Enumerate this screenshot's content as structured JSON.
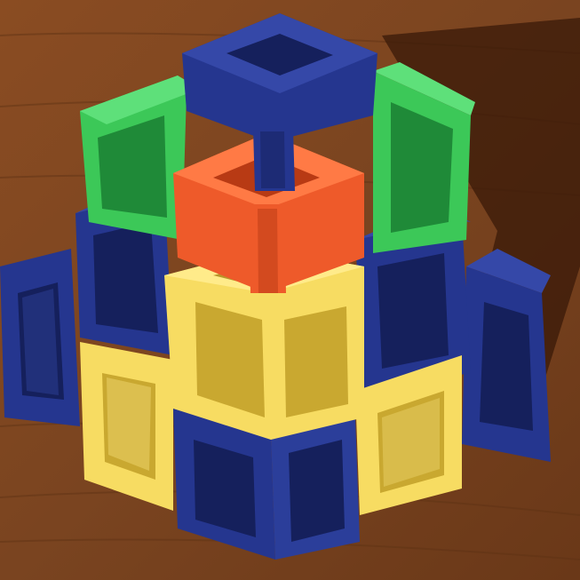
{
  "scene": {
    "subject": "cube-frame-pyramid",
    "colors": {
      "table": "#7a4420",
      "table_dark": "#5a2d12",
      "table_light": "#9a5a2c",
      "shadow": "#3a1a08",
      "blue": "#25368f",
      "blue_light": "#3548a8",
      "blue_dark": "#15205c",
      "green": "#3cc858",
      "green_light": "#5ee07a",
      "green_dark": "#1f8a38",
      "red": "#ee5a2a",
      "red_light": "#ff7a45",
      "red_dark": "#b83a14",
      "yellow": "#f7dc62",
      "yellow_light": "#ffeb8a",
      "yellow_dark": "#c9a830"
    }
  }
}
